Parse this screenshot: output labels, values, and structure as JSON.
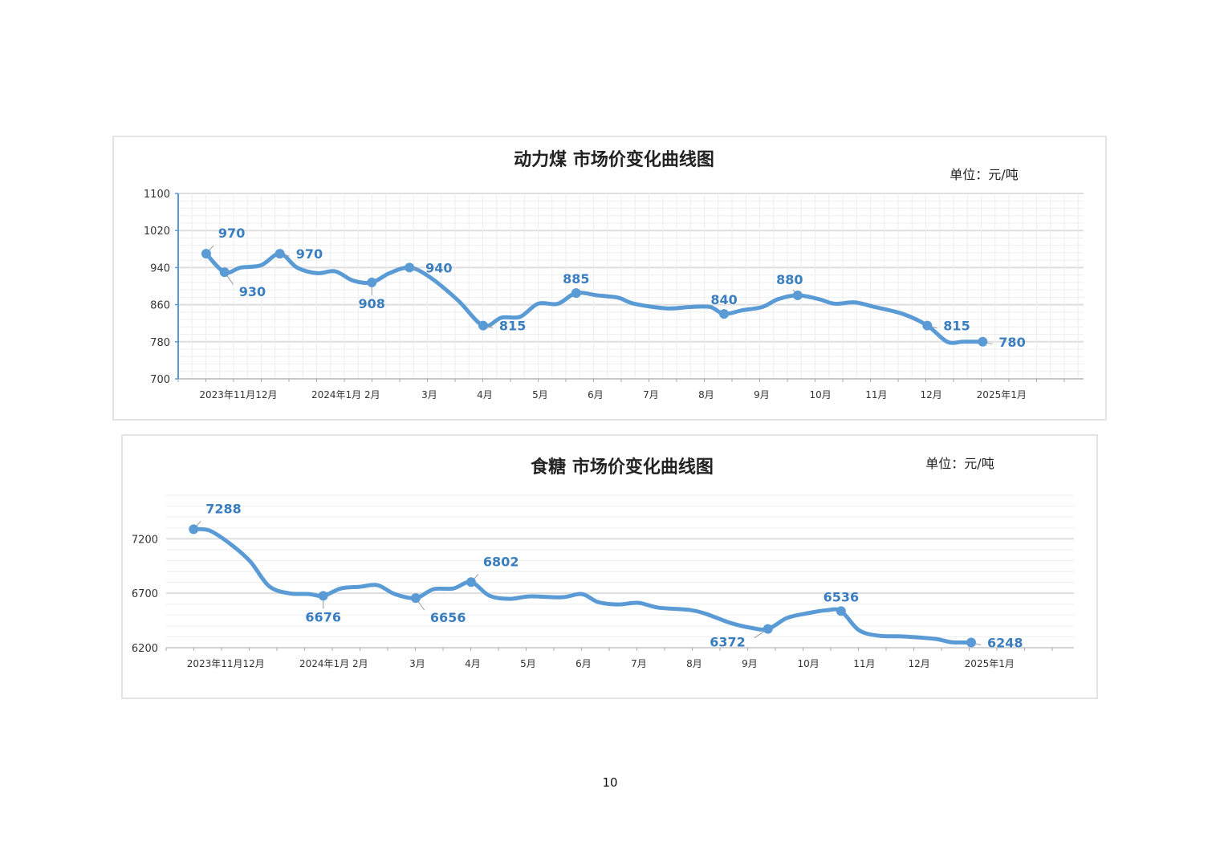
{
  "page_number": "10",
  "chart_data": [
    {
      "type": "line",
      "title": "动力煤 市场价变化曲线图",
      "unit_label": "单位：元/吨",
      "xlabel": "",
      "ylabel": "",
      "ylim": [
        700,
        1100
      ],
      "yticks": [
        700,
        780,
        860,
        940,
        1020,
        1100
      ],
      "xlim": [
        -0.54,
        15.8
      ],
      "x_unit": "months since 2023-11",
      "grid": true,
      "color": "#5b9bd5",
      "xticks": [
        {
          "label": "2023年11月12月",
          "x": 0.55
        },
        {
          "label": "2024年1月 2月",
          "x": 2.49
        },
        {
          "label": "3月",
          "x": 4
        },
        {
          "label": "4月",
          "x": 5
        },
        {
          "label": "5月",
          "x": 6
        },
        {
          "label": "6月",
          "x": 7
        },
        {
          "label": "7月",
          "x": 8
        },
        {
          "label": "8月",
          "x": 9
        },
        {
          "label": "9月",
          "x": 10
        },
        {
          "label": "10月",
          "x": 11.06
        },
        {
          "label": "11月",
          "x": 12.07
        },
        {
          "label": "12月",
          "x": 13.06
        },
        {
          "label": "2025年1月",
          "x": 14.33
        }
      ],
      "x": [
        -0.03,
        0.3,
        0.59,
        0.96,
        1.3,
        1.61,
        1.97,
        2.3,
        2.62,
        2.96,
        3.28,
        3.64,
        4.0,
        4.51,
        4.97,
        5.3,
        5.64,
        5.96,
        6.32,
        6.65,
        7.04,
        7.41,
        7.7,
        8.28,
        8.71,
        9.07,
        9.32,
        9.65,
        10.01,
        10.3,
        10.65,
        11.03,
        11.32,
        11.68,
        12.04,
        12.55,
        12.99,
        13.35,
        13.64,
        13.99
      ],
      "y": [
        970,
        930,
        940,
        945,
        970,
        940,
        928,
        932,
        912,
        908,
        928,
        940,
        920,
        870,
        815,
        832,
        834,
        862,
        862,
        885,
        880,
        875,
        862,
        852,
        855,
        855,
        840,
        848,
        855,
        872,
        880,
        872,
        862,
        865,
        855,
        840,
        815,
        780,
        780,
        780
      ],
      "labeled_points": [
        {
          "x": -0.03,
          "value": "970",
          "pos": "above-right"
        },
        {
          "x": 0.3,
          "value": "930",
          "pos": "below-right"
        },
        {
          "x": 1.3,
          "value": "970",
          "pos": "right"
        },
        {
          "x": 2.96,
          "value": "908",
          "pos": "below"
        },
        {
          "x": 3.64,
          "value": "940",
          "pos": "right"
        },
        {
          "x": 4.97,
          "value": "815",
          "pos": "right"
        },
        {
          "x": 6.65,
          "value": "885",
          "pos": "above"
        },
        {
          "x": 9.32,
          "value": "840",
          "pos": "above"
        },
        {
          "x": 10.65,
          "value": "880",
          "pos": "above-left"
        },
        {
          "x": 12.99,
          "value": "815",
          "pos": "right"
        },
        {
          "x": 13.99,
          "value": "780",
          "pos": "right"
        }
      ]
    },
    {
      "type": "line",
      "title": "食糖 市场价变化曲线图",
      "unit_label": "单位：元/吨",
      "xlabel": "",
      "ylabel": "",
      "ylim": [
        6200,
        7600
      ],
      "yticks": [
        6200,
        6700,
        7200
      ],
      "xlim": [
        -0.54,
        15.85
      ],
      "x_unit": "months since 2023-11",
      "grid": true,
      "color": "#5b9bd5",
      "xticks": [
        {
          "label": "2023年11月12月",
          "x": 0.54
        },
        {
          "label": "2024年1月 2月",
          "x": 2.49
        },
        {
          "label": "3月",
          "x": 4
        },
        {
          "label": "4月",
          "x": 5
        },
        {
          "label": "5月",
          "x": 6
        },
        {
          "label": "6月",
          "x": 7
        },
        {
          "label": "7月",
          "x": 8
        },
        {
          "label": "8月",
          "x": 9
        },
        {
          "label": "9月",
          "x": 10
        },
        {
          "label": "10月",
          "x": 11.06
        },
        {
          "label": "11月",
          "x": 12.07
        },
        {
          "label": "12月",
          "x": 13.06
        },
        {
          "label": "2025年1月",
          "x": 14.33
        }
      ],
      "x": [
        -0.04,
        0.26,
        0.67,
        0.99,
        1.32,
        1.68,
        2.04,
        2.3,
        2.62,
        2.96,
        3.28,
        3.59,
        3.97,
        4.29,
        4.65,
        4.97,
        5.3,
        5.67,
        6.03,
        6.61,
        6.97,
        7.26,
        7.62,
        7.99,
        8.35,
        8.93,
        9.22,
        9.65,
        10.01,
        10.33,
        10.67,
        11.03,
        11.39,
        11.65,
        11.97,
        12.33,
        12.77,
        13.35,
        13.64,
        14.0
      ],
      "y": [
        7288,
        7273,
        7134,
        6987,
        6766,
        6700,
        6693,
        6676,
        6744,
        6759,
        6774,
        6693,
        6656,
        6737,
        6744,
        6802,
        6678,
        6649,
        6671,
        6663,
        6693,
        6619,
        6597,
        6612,
        6568,
        6546,
        6509,
        6428,
        6384,
        6372,
        6472,
        6515,
        6544,
        6536,
        6362,
        6310,
        6303,
        6281,
        6251,
        6248
      ],
      "labeled_points": [
        {
          "x": -0.04,
          "value": "7288",
          "pos": "above-right"
        },
        {
          "x": 2.3,
          "value": "6676",
          "pos": "below"
        },
        {
          "x": 3.97,
          "value": "6656",
          "pos": "below-right"
        },
        {
          "x": 4.97,
          "value": "6802",
          "pos": "above-right"
        },
        {
          "x": 10.33,
          "value": "6372",
          "pos": "left"
        },
        {
          "x": 11.65,
          "value": "6536",
          "pos": "above"
        },
        {
          "x": 14.0,
          "value": "6248",
          "pos": "right"
        }
      ]
    }
  ]
}
